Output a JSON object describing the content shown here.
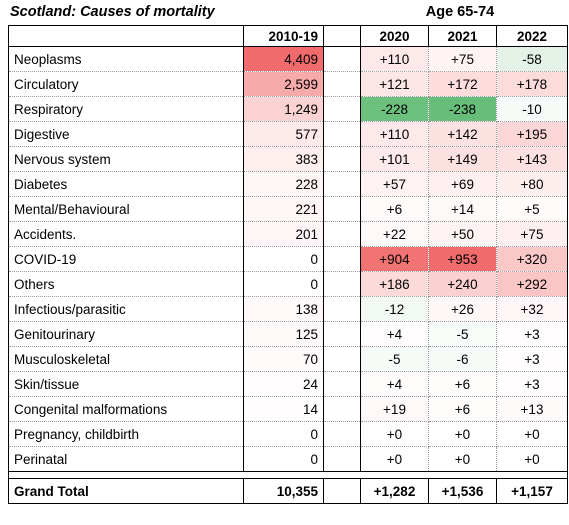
{
  "title": "Scotland: Causes of mortality",
  "age_header": "Age  65-74",
  "columns": {
    "base": "2010-19",
    "years": [
      "2020",
      "2021",
      "2022"
    ]
  },
  "rows": [
    {
      "label": "Neoplasms",
      "base": "4,409",
      "v": [
        "+110",
        "+75",
        "-58"
      ],
      "bg": [
        "#f06b6b",
        "#fde9e9",
        "#fef4f4",
        "#e3f1e6"
      ]
    },
    {
      "label": "Circulatory",
      "base": "2,599",
      "v": [
        "+121",
        "+172",
        "+178"
      ],
      "bg": [
        "#f7aaaa",
        "#fde6e6",
        "#fcdcdc",
        "#fcdbdb"
      ]
    },
    {
      "label": "Respiratory",
      "base": "1,249",
      "v": [
        "-228",
        "-238",
        "-10"
      ],
      "bg": [
        "#fbd3d3",
        "#6cc17f",
        "#66be7a",
        "#f7fbf8"
      ]
    },
    {
      "label": "Digestive",
      "base": "577",
      "v": [
        "+110",
        "+142",
        "+195"
      ],
      "bg": [
        "#fde9e9",
        "#fde9e9",
        "#fce1e1",
        "#fbd6d6"
      ]
    },
    {
      "label": "Nervous system",
      "base": "383",
      "v": [
        "+101",
        "+149",
        "+143"
      ],
      "bg": [
        "#feefef",
        "#feeaea",
        "#fde0e0",
        "#fde1e1"
      ]
    },
    {
      "label": "Diabetes",
      "base": "228",
      "v": [
        "+57",
        "+69",
        "+80"
      ],
      "bg": [
        "#fef5f5",
        "#fef2f2",
        "#fef0f0",
        "#fdeeee"
      ]
    },
    {
      "label": "Mental/Behavioural",
      "base": "221",
      "v": [
        "+6",
        "+14",
        "+5"
      ],
      "bg": [
        "#fef5f5",
        "#fffbfb",
        "#fef9f9",
        "#fffbfb"
      ]
    },
    {
      "label": "Accidents.",
      "base": "201",
      "v": [
        "+22",
        "+50",
        "+75"
      ],
      "bg": [
        "#fef6f6",
        "#fef8f8",
        "#fef3f3",
        "#fdefef"
      ]
    },
    {
      "label": "COVID-19",
      "base": "0",
      "v": [
        "+904",
        "+953",
        "+320"
      ],
      "bg": [
        "#ffffff",
        "#f27373",
        "#f06b6b",
        "#fbc8c8"
      ]
    },
    {
      "label": "Others",
      "base": "0",
      "v": [
        "+186",
        "+240",
        "+292"
      ],
      "bg": [
        "#ffffff",
        "#fcdada",
        "#fbd0d0",
        "#fac5c5"
      ]
    },
    {
      "label": "Infectious/parasitic",
      "base": "138",
      "v": [
        "-12",
        "+26",
        "+32"
      ],
      "bg": [
        "#fef8f8",
        "#f2f9f3",
        "#fef7f7",
        "#fef6f6"
      ]
    },
    {
      "label": "Genitourinary",
      "base": "125",
      "v": [
        "+4",
        "-5",
        "+3"
      ],
      "bg": [
        "#fef9f9",
        "#fffdfd",
        "#f8fcf9",
        "#fffdfd"
      ]
    },
    {
      "label": "Musculoskeletal",
      "base": "70",
      "v": [
        "-5",
        "-6",
        "+3"
      ],
      "bg": [
        "#fffbfb",
        "#f6fbf7",
        "#f6fbf7",
        "#fffdfd"
      ]
    },
    {
      "label": "Skin/tissue",
      "base": "24",
      "v": [
        "+4",
        "+6",
        "+3"
      ],
      "bg": [
        "#fffdfd",
        "#fffcfc",
        "#fffcfc",
        "#fffdfd"
      ]
    },
    {
      "label": "Congenital malformations",
      "base": "14",
      "v": [
        "+19",
        "+6",
        "+13"
      ],
      "bg": [
        "#fffdfd",
        "#fef8f8",
        "#fffcfc",
        "#fefafa"
      ]
    },
    {
      "label": "Pregnancy, childbirth",
      "base": "0",
      "v": [
        "+0",
        "+0",
        "+0"
      ],
      "bg": [
        "#ffffff",
        "#ffffff",
        "#ffffff",
        "#ffffff"
      ]
    },
    {
      "label": "Perinatal",
      "base": "0",
      "v": [
        "+0",
        "+0",
        "+0"
      ],
      "bg": [
        "#ffffff",
        "#ffffff",
        "#ffffff",
        "#ffffff"
      ]
    }
  ],
  "total": {
    "label": "Grand Total",
    "base": "10,355",
    "v": [
      "+1,282",
      "+1,536",
      "+1,157"
    ]
  }
}
